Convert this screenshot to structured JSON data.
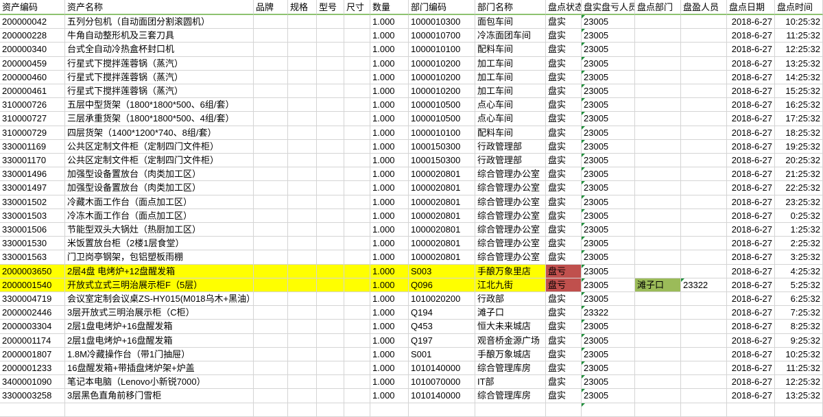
{
  "columns": [
    "资产编码",
    "资产名称",
    "品牌",
    "规格",
    "型号",
    "尺寸",
    "数量",
    "部门编码",
    "部门名称",
    "盘点状态",
    "盘实盘亏人员",
    "盘点部门",
    "盘盈人员",
    "盘点日期",
    "盘点时间"
  ],
  "colors": {
    "highlight_row": "#ffff00",
    "loss_status": "#c0504d",
    "surplus_cell": "#9bbb59",
    "header_underline": "#8dc26f"
  },
  "rows": [
    [
      "200000042",
      "五列分包机（自动面团分割滚圆机）",
      "",
      "",
      "",
      "",
      "1.000",
      "1000010300",
      "面包车间",
      "盘实",
      "23005",
      "",
      "",
      "2018-6-27",
      "10:25:32"
    ],
    [
      "200000228",
      "牛角自动整形机及三套刀具",
      "",
      "",
      "",
      "",
      "1.000",
      "1000010700",
      "冷冻面团车间",
      "盘实",
      "23005",
      "",
      "",
      "2018-6-27",
      "11:25:32"
    ],
    [
      "200000340",
      "台式全自动冷热盒杯封口机",
      "",
      "",
      "",
      "",
      "1.000",
      "1000010100",
      "配料车间",
      "盘实",
      "23005",
      "",
      "",
      "2018-6-27",
      "12:25:32"
    ],
    [
      "200000459",
      "行星式下搅拌莲蓉锅（蒸汽）",
      "",
      "",
      "",
      "",
      "1.000",
      "1000010200",
      "加工车间",
      "盘实",
      "23005",
      "",
      "",
      "2018-6-27",
      "13:25:32"
    ],
    [
      "200000460",
      "行星式下搅拌莲蓉锅（蒸汽）",
      "",
      "",
      "",
      "",
      "1.000",
      "1000010200",
      "加工车间",
      "盘实",
      "23005",
      "",
      "",
      "2018-6-27",
      "14:25:32"
    ],
    [
      "200000461",
      "行星式下搅拌莲蓉锅（蒸汽）",
      "",
      "",
      "",
      "",
      "1.000",
      "1000010200",
      "加工车间",
      "盘实",
      "23005",
      "",
      "",
      "2018-6-27",
      "15:25:32"
    ],
    [
      "310000726",
      "五层中型货架（1800*1800*500、6组/套）",
      "",
      "",
      "",
      "",
      "1.000",
      "1000010500",
      "点心车间",
      "盘实",
      "23005",
      "",
      "",
      "2018-6-27",
      "16:25:32"
    ],
    [
      "310000727",
      "三层承重货架（1800*1800*500、4组/套）",
      "",
      "",
      "",
      "",
      "1.000",
      "1000010500",
      "点心车间",
      "盘实",
      "23005",
      "",
      "",
      "2018-6-27",
      "17:25:32"
    ],
    [
      "310000729",
      "四层货架（1400*1200*740、8组/套）",
      "",
      "",
      "",
      "",
      "1.000",
      "1000010100",
      "配料车间",
      "盘实",
      "23005",
      "",
      "",
      "2018-6-27",
      "18:25:32"
    ],
    [
      "330001169",
      "公共区定制文件柜（定制四门文件柜）",
      "",
      "",
      "",
      "",
      "1.000",
      "1000150300",
      "行政管理部",
      "盘实",
      "23005",
      "",
      "",
      "2018-6-27",
      "19:25:32"
    ],
    [
      "330001170",
      "公共区定制文件柜（定制四门文件柜）",
      "",
      "",
      "",
      "",
      "1.000",
      "1000150300",
      "行政管理部",
      "盘实",
      "23005",
      "",
      "",
      "2018-6-27",
      "20:25:32"
    ],
    [
      "330001496",
      "加强型设备置放台（肉类加工区）",
      "",
      "",
      "",
      "",
      "1.000",
      "1000020801",
      "综合管理办公室",
      "盘实",
      "23005",
      "",
      "",
      "2018-6-27",
      "21:25:32"
    ],
    [
      "330001497",
      "加强型设备置放台（肉类加工区）",
      "",
      "",
      "",
      "",
      "1.000",
      "1000020801",
      "综合管理办公室",
      "盘实",
      "23005",
      "",
      "",
      "2018-6-27",
      "22:25:32"
    ],
    [
      "330001502",
      "冷藏木面工作台（面点加工区）",
      "",
      "",
      "",
      "",
      "1.000",
      "1000020801",
      "综合管理办公室",
      "盘实",
      "23005",
      "",
      "",
      "2018-6-27",
      "23:25:32"
    ],
    [
      "330001503",
      "冷冻木面工作台（面点加工区）",
      "",
      "",
      "",
      "",
      "1.000",
      "1000020801",
      "综合管理办公室",
      "盘实",
      "23005",
      "",
      "",
      "2018-6-27",
      "0:25:32"
    ],
    [
      "330001506",
      "节能型双头大锅灶（热厨加工区）",
      "",
      "",
      "",
      "",
      "1.000",
      "1000020801",
      "综合管理办公室",
      "盘实",
      "23005",
      "",
      "",
      "2018-6-27",
      "1:25:32"
    ],
    [
      "330001530",
      "米饭置放台柜（2楼1层食堂）",
      "",
      "",
      "",
      "",
      "1.000",
      "1000020801",
      "综合管理办公室",
      "盘实",
      "23005",
      "",
      "",
      "2018-6-27",
      "2:25:32"
    ],
    [
      "330001563",
      "门卫岗亭钢架，包铝塑板雨棚",
      "",
      "",
      "",
      "",
      "1.000",
      "1000020801",
      "综合管理办公室",
      "盘实",
      "23005",
      "",
      "",
      "2018-6-27",
      "3:25:32"
    ],
    [
      "2000003650",
      "2层4盘 电烤炉+12盘醒发箱",
      "",
      "",
      "",
      "",
      "1.000",
      "S003",
      "手酿万象里店",
      "盘亏",
      "23005",
      "",
      "",
      "2018-6-27",
      "4:25:32"
    ],
    [
      "2000001540",
      "开放式立式三明治展示柜F（5层）",
      "",
      "",
      "",
      "",
      "1.000",
      "Q096",
      "江北九街",
      "盘亏",
      "23005",
      "滩子口",
      "23322",
      "2018-6-27",
      "5:25:32"
    ],
    [
      "3300004719",
      "会议室定制会议桌ZS-HY015(M018乌木+黑油）",
      "",
      "",
      "",
      "",
      "1.000",
      "1010020200",
      "行政部",
      "盘实",
      "23005",
      "",
      "",
      "2018-6-27",
      "6:25:32"
    ],
    [
      "2000002446",
      "3层开放式三明治展示柜（C柜）",
      "",
      "",
      "",
      "",
      "1.000",
      "Q194",
      "滩子口",
      "盘实",
      "23322",
      "",
      "",
      "2018-6-27",
      "7:25:32"
    ],
    [
      "2000003304",
      "2层1盘电烤炉+16盘醒发箱",
      "",
      "",
      "",
      "",
      "1.000",
      "Q453",
      "恒大未来城店",
      "盘实",
      "23005",
      "",
      "",
      "2018-6-27",
      "8:25:32"
    ],
    [
      "2000001174",
      "2层1盘电烤炉+16盘醒发箱",
      "",
      "",
      "",
      "",
      "1.000",
      "Q197",
      "观音桥金源广场",
      "盘实",
      "23005",
      "",
      "",
      "2018-6-27",
      "9:25:32"
    ],
    [
      "2000001807",
      "1.8M冷藏操作台（带1门抽屉）",
      "",
      "",
      "",
      "",
      "1.000",
      "S001",
      "手酿万象城店",
      "盘实",
      "23005",
      "",
      "",
      "2018-6-27",
      "10:25:32"
    ],
    [
      "2000001233",
      "16盘醒发箱+带插盘烤炉架+炉盖",
      "",
      "",
      "",
      "",
      "1.000",
      "1010140000",
      "综合管理库房",
      "盘实",
      "23005",
      "",
      "",
      "2018-6-27",
      "11:25:32"
    ],
    [
      "3400001090",
      "笔记本电脑（Lenovo小新锐7000）",
      "",
      "",
      "",
      "",
      "1.000",
      "1010070000",
      "IT部",
      "盘实",
      "23005",
      "",
      "",
      "2018-6-27",
      "12:25:32"
    ],
    [
      "3300003258",
      "3层黑色直角前移门雪柜",
      "",
      "",
      "",
      "",
      "1.000",
      "1010140000",
      "综合管理库房",
      "盘实",
      "23005",
      "",
      "",
      "2018-6-27",
      "13:25:32"
    ]
  ],
  "highlighted_rows": [
    18,
    19
  ]
}
